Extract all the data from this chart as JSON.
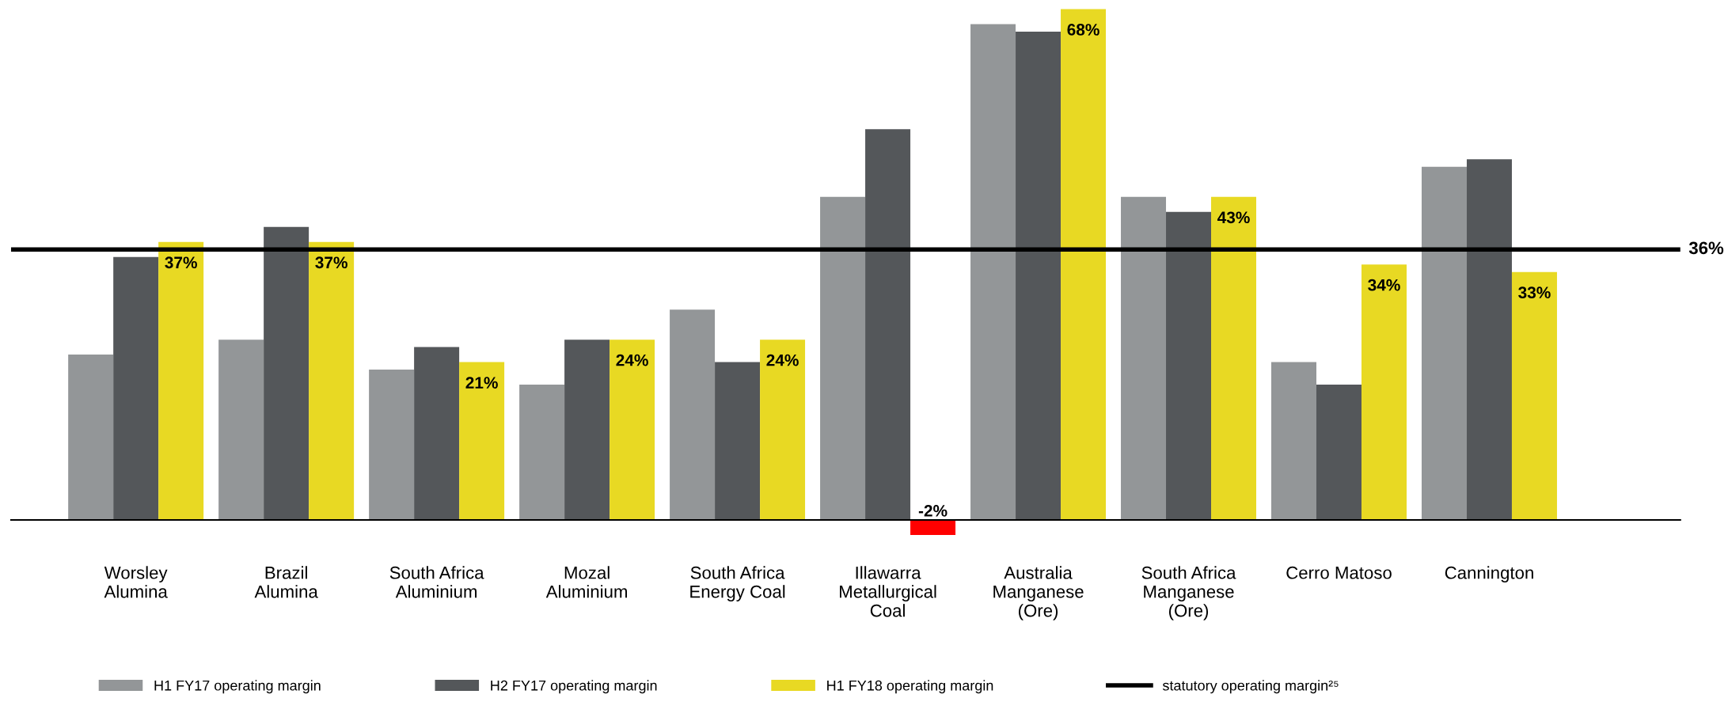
{
  "chart_data": {
    "type": "bar",
    "categories": [
      "Worsley\nAlumina",
      "Brazil\nAlumina",
      "South Africa\nAluminium",
      "Mozal\nAluminium",
      "South Africa\nEnergy Coal",
      "Illawarra\nMetallurgical\nCoal",
      "Australia\nManganese\n(Ore)",
      "South Africa\nManganese\n(Ore)",
      "Cerro Matoso",
      "Cannington"
    ],
    "series": [
      {
        "name": "H1 FY17 operating margin",
        "color": "#939698",
        "values": [
          22,
          24,
          20,
          18,
          28,
          43,
          66,
          43,
          21,
          47
        ]
      },
      {
        "name": "H2 FY17 operating margin",
        "color": "#54575a",
        "values": [
          35,
          39,
          23,
          24,
          21,
          52,
          65,
          41,
          18,
          48
        ]
      },
      {
        "name": "H1 FY18 operating margin",
        "color": "#e8d923",
        "colors": [
          "#e8d923",
          "#e8d923",
          "#e8d923",
          "#e8d923",
          "#e8d923",
          "#ff0000",
          "#e8d923",
          "#e8d923",
          "#e8d923",
          "#e8d923"
        ],
        "values": [
          37,
          37,
          21,
          24,
          24,
          -2,
          68,
          43,
          34,
          33
        ],
        "value_labels": [
          "37%",
          "37%",
          "21%",
          "24%",
          "24%",
          "-2%",
          "68%",
          "43%",
          "34%",
          "33%"
        ]
      }
    ],
    "annotations": [
      "statutory operating margin²⁵"
    ],
    "tick_labels": "x",
    "ref_lines": [
      {
        "axis": "y",
        "value": 36,
        "label": "36%",
        "color": "#000000",
        "line_style": "solid"
      }
    ],
    "legend": "bottom",
    "grid": false
  }
}
